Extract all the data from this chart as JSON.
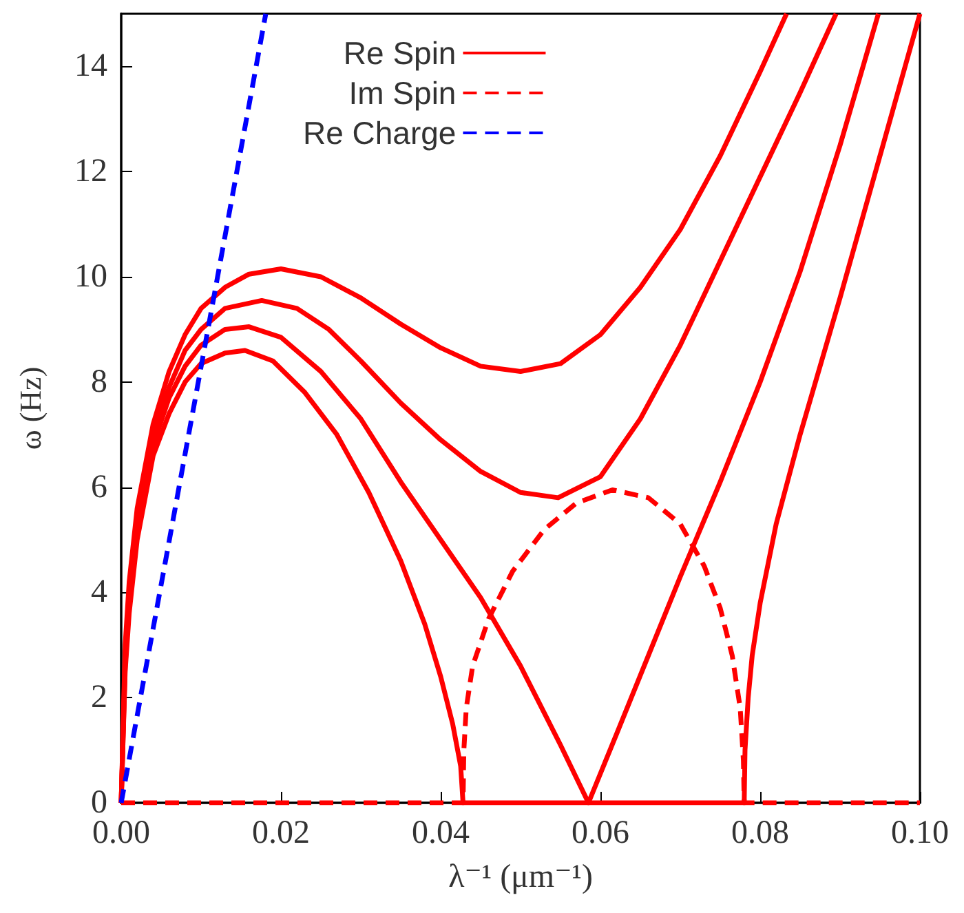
{
  "chart_data": {
    "type": "line",
    "xlabel": "λ⁻¹ (μm⁻¹)",
    "ylabel": "ω (Hz)",
    "xlim": [
      0,
      0.1
    ],
    "ylim": [
      0,
      15
    ],
    "xticks": [
      {
        "value": 0,
        "label": "0.00"
      },
      0.02,
      0.04,
      0.06,
      0.08,
      {
        "value": 0.1,
        "label": "0.10"
      }
    ],
    "yticks": [
      0,
      2,
      4,
      6,
      8,
      10,
      12,
      14
    ],
    "grid": false,
    "legend": "top",
    "marker": "none",
    "series": [
      {
        "name": "Re Spin",
        "color": "#ff0000",
        "line_style": "solid",
        "x": [
          0,
          0.0005,
          0.001,
          0.002,
          0.004,
          0.006,
          0.008,
          0.01,
          0.013,
          0.016,
          0.02,
          0.025,
          0.03,
          0.035,
          0.04,
          0.045,
          0.05,
          0.055,
          0.06,
          0.065,
          0.07,
          0.075,
          0.08,
          0.0833
        ],
        "values": [
          0,
          3,
          4.2,
          5.6,
          7.2,
          8.2,
          8.9,
          9.4,
          9.8,
          10.05,
          10.15,
          10,
          9.6,
          9.1,
          8.65,
          8.3,
          8.2,
          8.35,
          8.9,
          9.8,
          10.9,
          12.3,
          13.9,
          15
        ]
      },
      {
        "color": "#ff0000",
        "line_style": "solid",
        "x": [
          0,
          0.0005,
          0.001,
          0.002,
          0.004,
          0.006,
          0.008,
          0.01,
          0.013,
          0.0176,
          0.022,
          0.026,
          0.03,
          0.035,
          0.04,
          0.045,
          0.05,
          0.0547,
          0.06,
          0.065,
          0.07,
          0.075,
          0.08,
          0.085,
          0.0895
        ],
        "values": [
          0,
          2.8,
          4,
          5.4,
          7,
          7.9,
          8.6,
          9,
          9.4,
          9.55,
          9.4,
          9,
          8.4,
          7.6,
          6.9,
          6.3,
          5.9,
          5.8,
          6.2,
          7.3,
          8.7,
          10.3,
          11.9,
          13.5,
          15
        ]
      },
      {
        "color": "#ff0000",
        "line_style": "solid",
        "x": [
          0,
          0.0005,
          0.001,
          0.002,
          0.004,
          0.006,
          0.008,
          0.01,
          0.013,
          0.016,
          0.02,
          0.025,
          0.03,
          0.035,
          0.04,
          0.045,
          0.05,
          0.055,
          0.0585,
          0.062,
          0.066,
          0.07,
          0.075,
          0.08,
          0.085,
          0.09,
          0.0948
        ],
        "values": [
          0,
          2.6,
          3.8,
          5.2,
          6.8,
          7.7,
          8.3,
          8.7,
          9,
          9.05,
          8.85,
          8.2,
          7.3,
          6.1,
          5,
          3.9,
          2.6,
          1.1,
          0,
          1.3,
          2.8,
          4.3,
          6.1,
          8,
          10.1,
          12.5,
          15
        ]
      },
      {
        "color": "#ff0000",
        "line_style": "solid",
        "x": [
          0,
          0.0005,
          0.001,
          0.002,
          0.004,
          0.006,
          0.008,
          0.01,
          0.013,
          0.0155,
          0.019,
          0.023,
          0.027,
          0.031,
          0.035,
          0.038,
          0.04,
          0.0415,
          0.0425,
          0.0428,
          0.078,
          0.0781,
          0.0785,
          0.079,
          0.08,
          0.082,
          0.085,
          0.09,
          0.095,
          0.1
        ],
        "values": [
          0,
          2.5,
          3.6,
          5,
          6.6,
          7.4,
          8,
          8.35,
          8.55,
          8.6,
          8.4,
          7.8,
          7,
          5.9,
          4.6,
          3.4,
          2.4,
          1.5,
          0.7,
          0,
          0,
          1,
          2,
          2.8,
          3.8,
          5.3,
          7,
          9.6,
          12.3,
          15
        ]
      },
      {
        "name": "Im Spin",
        "color": "#ff0000",
        "line_style": "dashed",
        "x": [
          0,
          0.0428,
          0.0429,
          0.0432,
          0.044,
          0.046,
          0.049,
          0.053,
          0.057,
          0.0615,
          0.066,
          0.07,
          0.073,
          0.075,
          0.0765,
          0.0775,
          0.0779,
          0.078,
          0.1
        ],
        "values": [
          0,
          0,
          1,
          1.8,
          2.6,
          3.5,
          4.4,
          5.2,
          5.7,
          5.95,
          5.8,
          5.3,
          4.5,
          3.7,
          2.8,
          1.8,
          0.8,
          0,
          0
        ]
      },
      {
        "name": "Re Charge",
        "color": "#0000ff",
        "line_style": "dashed",
        "x": [
          0,
          0.0181
        ],
        "values": [
          0,
          15
        ]
      }
    ]
  }
}
